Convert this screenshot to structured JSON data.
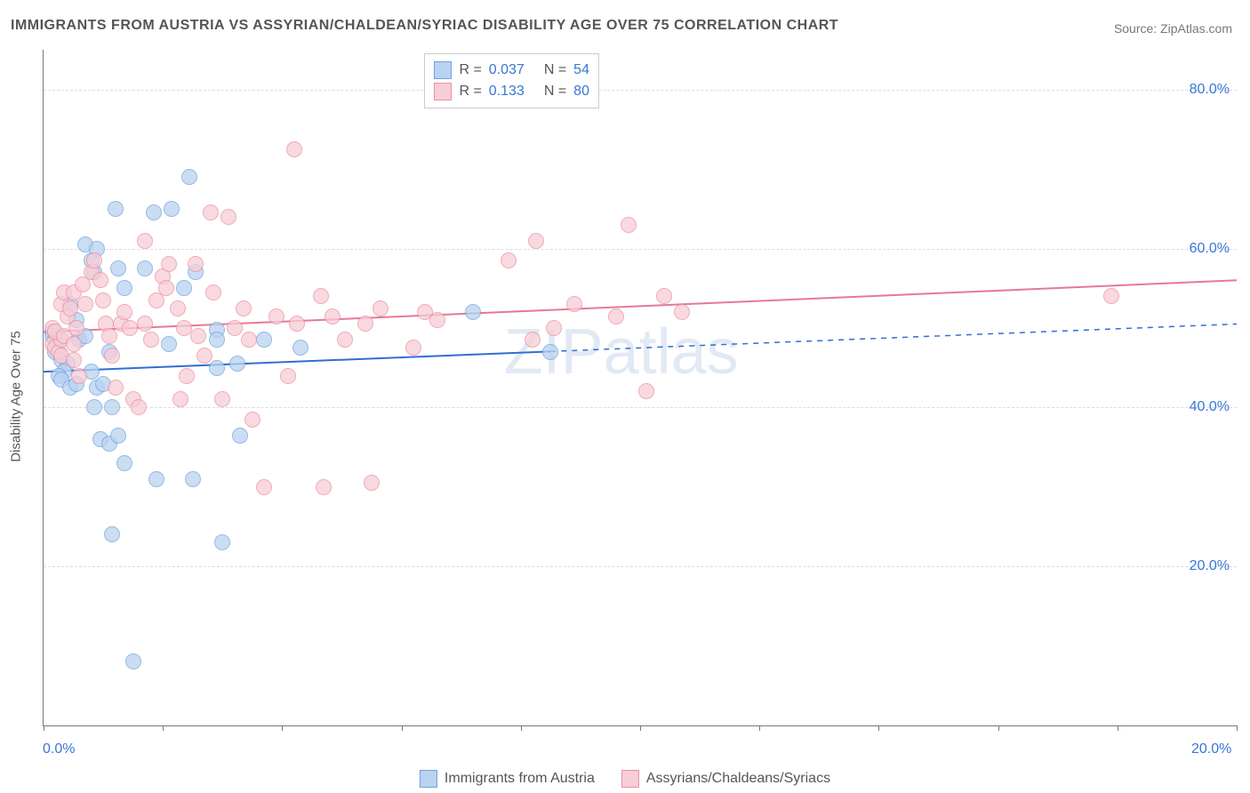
{
  "title": "IMMIGRANTS FROM AUSTRIA VS ASSYRIAN/CHALDEAN/SYRIAC DISABILITY AGE OVER 75 CORRELATION CHART",
  "source": "Source: ZipAtlas.com",
  "ylabel": "Disability Age Over 75",
  "watermark": "ZIPatlas",
  "chart": {
    "type": "scatter",
    "background_color": "#ffffff",
    "grid_color": "#dddddd",
    "axis_color": "#777777",
    "xlim": [
      0,
      20
    ],
    "ylim": [
      0,
      85
    ],
    "x_ticks": [
      0,
      2,
      4,
      6,
      8,
      10,
      12,
      14,
      16,
      18,
      20
    ],
    "x_tick_labels": {
      "first": "0.0%",
      "last": "20.0%"
    },
    "y_grid_at": [
      20,
      40,
      60,
      80
    ],
    "y_tick_labels": [
      "20.0%",
      "40.0%",
      "60.0%",
      "80.0%"
    ],
    "marker_radius": 8,
    "marker_stroke_width": 1.5,
    "series": [
      {
        "name": "Immigrants from Austria",
        "fill": "#b9d2f0",
        "stroke": "#6fa4e0",
        "line_color": "#2f6fd1",
        "line_width": 2,
        "line_y0": 44.5,
        "line_y1": 50.5,
        "solid_x_end": 8.5,
        "points": [
          [
            0.15,
            49.5
          ],
          [
            0.15,
            49
          ],
          [
            0.2,
            48.5
          ],
          [
            0.25,
            48.5
          ],
          [
            0.2,
            47
          ],
          [
            0.3,
            46
          ],
          [
            0.4,
            45.5
          ],
          [
            0.35,
            44.5
          ],
          [
            0.25,
            44
          ],
          [
            0.3,
            43.5
          ],
          [
            0.45,
            42.5
          ],
          [
            0.45,
            53
          ],
          [
            0.55,
            51
          ],
          [
            0.6,
            48.5
          ],
          [
            0.55,
            43
          ],
          [
            0.7,
            60.5
          ],
          [
            0.8,
            58.5
          ],
          [
            0.9,
            60
          ],
          [
            0.85,
            57
          ],
          [
            0.7,
            49
          ],
          [
            0.8,
            44.5
          ],
          [
            0.9,
            42.5
          ],
          [
            0.85,
            40
          ],
          [
            0.95,
            36
          ],
          [
            1.0,
            43
          ],
          [
            1.1,
            47
          ],
          [
            1.15,
            40
          ],
          [
            1.2,
            65
          ],
          [
            1.25,
            57.5
          ],
          [
            1.35,
            55
          ],
          [
            1.1,
            35.5
          ],
          [
            1.25,
            36.5
          ],
          [
            1.35,
            33
          ],
          [
            1.15,
            24
          ],
          [
            1.5,
            8
          ],
          [
            1.7,
            57.5
          ],
          [
            1.85,
            64.5
          ],
          [
            1.9,
            31
          ],
          [
            2.1,
            48
          ],
          [
            2.15,
            65
          ],
          [
            2.35,
            55
          ],
          [
            2.45,
            69
          ],
          [
            2.5,
            31
          ],
          [
            2.55,
            57
          ],
          [
            2.9,
            49.8
          ],
          [
            2.9,
            48.5
          ],
          [
            2.9,
            45
          ],
          [
            3.0,
            23
          ],
          [
            3.25,
            45.5
          ],
          [
            3.3,
            36.5
          ],
          [
            3.7,
            48.5
          ],
          [
            4.3,
            47.5
          ],
          [
            7.2,
            52
          ],
          [
            8.5,
            47
          ]
        ]
      },
      {
        "name": "Assyrians/Chaldeans/Syriacs",
        "fill": "#f7cdd6",
        "stroke": "#ec8fa3",
        "line_color": "#e87893",
        "line_width": 2,
        "line_y0": 49.5,
        "line_y1": 56,
        "solid_x_end": 20,
        "points": [
          [
            0.15,
            50
          ],
          [
            0.15,
            48
          ],
          [
            0.2,
            47.5
          ],
          [
            0.25,
            47
          ],
          [
            0.3,
            46.5
          ],
          [
            0.3,
            48.5
          ],
          [
            0.2,
            49.5
          ],
          [
            0.35,
            49
          ],
          [
            0.3,
            53
          ],
          [
            0.4,
            51.5
          ],
          [
            0.45,
            52.5
          ],
          [
            0.35,
            54.5
          ],
          [
            0.5,
            54.5
          ],
          [
            0.55,
            50
          ],
          [
            0.5,
            48
          ],
          [
            0.5,
            46
          ],
          [
            0.6,
            44
          ],
          [
            0.65,
            55.5
          ],
          [
            0.7,
            53
          ],
          [
            0.8,
            57
          ],
          [
            0.85,
            58.5
          ],
          [
            0.95,
            56
          ],
          [
            1.0,
            53.5
          ],
          [
            1.05,
            50.5
          ],
          [
            1.1,
            49
          ],
          [
            1.15,
            46.5
          ],
          [
            1.2,
            42.5
          ],
          [
            1.3,
            50.5
          ],
          [
            1.35,
            52
          ],
          [
            1.45,
            50
          ],
          [
            1.5,
            41
          ],
          [
            1.6,
            40
          ],
          [
            1.7,
            61
          ],
          [
            1.7,
            50.5
          ],
          [
            1.8,
            48.5
          ],
          [
            1.9,
            53.5
          ],
          [
            2.0,
            56.5
          ],
          [
            2.05,
            55
          ],
          [
            2.1,
            58
          ],
          [
            2.25,
            52.5
          ],
          [
            2.3,
            41
          ],
          [
            2.35,
            50
          ],
          [
            2.4,
            44
          ],
          [
            2.55,
            58
          ],
          [
            2.6,
            49
          ],
          [
            2.7,
            46.5
          ],
          [
            2.8,
            64.5
          ],
          [
            2.85,
            54.5
          ],
          [
            3.0,
            41
          ],
          [
            3.1,
            64
          ],
          [
            3.2,
            50
          ],
          [
            3.35,
            52.5
          ],
          [
            3.45,
            48.5
          ],
          [
            3.5,
            38.5
          ],
          [
            3.7,
            30
          ],
          [
            3.9,
            51.5
          ],
          [
            4.1,
            44
          ],
          [
            4.2,
            72.5
          ],
          [
            4.25,
            50.5
          ],
          [
            4.65,
            54
          ],
          [
            4.7,
            30
          ],
          [
            4.85,
            51.5
          ],
          [
            5.05,
            48.5
          ],
          [
            5.4,
            50.5
          ],
          [
            5.5,
            30.5
          ],
          [
            5.65,
            52.5
          ],
          [
            6.2,
            47.5
          ],
          [
            6.4,
            52
          ],
          [
            6.6,
            51
          ],
          [
            7.8,
            58.5
          ],
          [
            8.2,
            48.5
          ],
          [
            8.25,
            61
          ],
          [
            8.55,
            50
          ],
          [
            8.9,
            53
          ],
          [
            9.6,
            51.5
          ],
          [
            9.8,
            63
          ],
          [
            10.4,
            54
          ],
          [
            10.7,
            52
          ],
          [
            17.9,
            54
          ],
          [
            10.1,
            42
          ]
        ]
      }
    ],
    "correlation_box": {
      "rows": [
        {
          "swatch": 0,
          "R": "0.037",
          "N": "54"
        },
        {
          "swatch": 1,
          "R": "0.133",
          "N": "80"
        }
      ]
    }
  }
}
